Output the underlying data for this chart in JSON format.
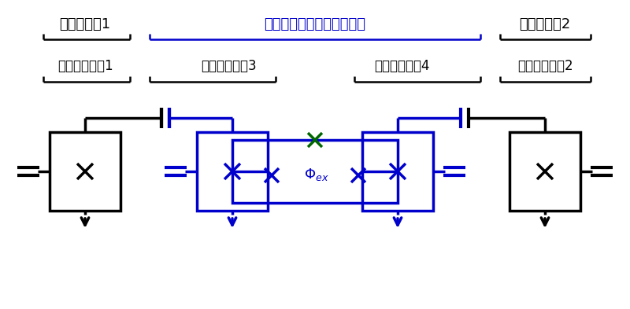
{
  "bg": "#ffffff",
  "black": "#000000",
  "blue": "#0000cc",
  "green": "#006600",
  "label_qb1": "量子ビット1",
  "label_qb2": "量子ビット2",
  "title_coupler": "ダブルトランズモンカプラ",
  "label_tr1": "トランズモン1",
  "label_tr2": "トランズモン2",
  "label_tr3": "トランズモン3",
  "label_tr4": "トランズモン4",
  "lw": 2.5
}
